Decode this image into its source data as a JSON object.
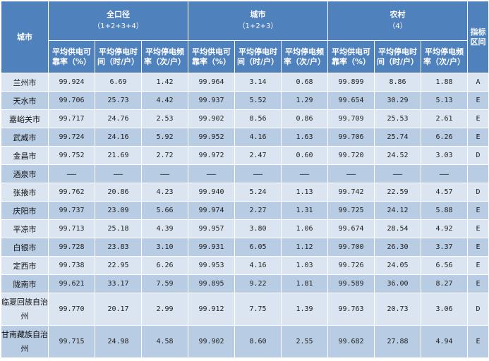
{
  "headers": {
    "city": "城市",
    "groups": [
      {
        "title": "全口径",
        "subtitle": "（1+2+3+4）"
      },
      {
        "title": "城市",
        "subtitle": "（1+2+3）"
      },
      {
        "title": "农村",
        "subtitle": "（4）"
      }
    ],
    "index_col": "指标区间",
    "metrics": [
      "平均供电可靠率（%）",
      "平均停电时间（时/户）",
      "平均停电频率（次/户）"
    ]
  },
  "rows": [
    {
      "city": "兰州市",
      "values": [
        "99.924",
        "6.69",
        "1.42",
        "99.964",
        "3.14",
        "0.68",
        "99.899",
        "8.86",
        "1.88"
      ],
      "grade": "A"
    },
    {
      "city": "天水市",
      "values": [
        "99.706",
        "25.73",
        "4.42",
        "99.937",
        "5.52",
        "1.29",
        "99.654",
        "30.29",
        "5.13"
      ],
      "grade": "E"
    },
    {
      "city": "嘉峪关市",
      "values": [
        "99.717",
        "24.76",
        "2.53",
        "99.902",
        "8.56",
        "0.86",
        "99.709",
        "25.53",
        "2.61"
      ],
      "grade": "E"
    },
    {
      "city": "武威市",
      "values": [
        "99.724",
        "24.16",
        "5.92",
        "99.952",
        "4.16",
        "1.63",
        "99.706",
        "25.74",
        "6.26"
      ],
      "grade": "E"
    },
    {
      "city": "金昌市",
      "values": [
        "99.752",
        "21.69",
        "2.72",
        "99.972",
        "2.47",
        "0.60",
        "99.720",
        "24.52",
        "3.03"
      ],
      "grade": "D"
    },
    {
      "city": "酒泉市",
      "values": [
        "——",
        "——",
        "——",
        "——",
        "——",
        "——",
        "——",
        "——",
        "——"
      ],
      "grade": ""
    },
    {
      "city": "张掖市",
      "values": [
        "99.762",
        "20.86",
        "4.23",
        "99.940",
        "5.24",
        "1.13",
        "99.742",
        "22.59",
        "4.57"
      ],
      "grade": "D"
    },
    {
      "city": "庆阳市",
      "values": [
        "99.737",
        "23.09",
        "5.66",
        "99.974",
        "2.27",
        "1.31",
        "99.725",
        "24.12",
        "5.88"
      ],
      "grade": "E"
    },
    {
      "city": "平凉市",
      "values": [
        "99.713",
        "25.18",
        "4.39",
        "99.957",
        "3.80",
        "1.06",
        "99.674",
        "28.54",
        "4.92"
      ],
      "grade": "E"
    },
    {
      "city": "白银市",
      "values": [
        "99.728",
        "23.83",
        "3.10",
        "99.931",
        "6.05",
        "1.12",
        "99.700",
        "26.30",
        "3.37"
      ],
      "grade": "E"
    },
    {
      "city": "定西市",
      "values": [
        "99.738",
        "22.95",
        "6.26",
        "99.953",
        "4.16",
        "1.03",
        "99.726",
        "24.05",
        "6.56"
      ],
      "grade": "E"
    },
    {
      "city": "陇南市",
      "values": [
        "99.621",
        "33.17",
        "7.59",
        "99.895",
        "9.22",
        "1.81",
        "99.589",
        "36.00",
        "8.27"
      ],
      "grade": "E"
    },
    {
      "city": "临夏回族自治州",
      "values": [
        "99.770",
        "20.17",
        "2.99",
        "99.912",
        "7.75",
        "1.39",
        "99.763",
        "20.73",
        "3.06"
      ],
      "grade": "D"
    },
    {
      "city": "甘南藏族自治州",
      "values": [
        "99.715",
        "24.98",
        "4.58",
        "99.902",
        "8.60",
        "2.55",
        "99.682",
        "27.88",
        "4.94"
      ],
      "grade": "E"
    }
  ],
  "colors": {
    "header": "#4f81bd",
    "row_light": "#dbe5f1",
    "row_dark": "#b8cce4"
  }
}
